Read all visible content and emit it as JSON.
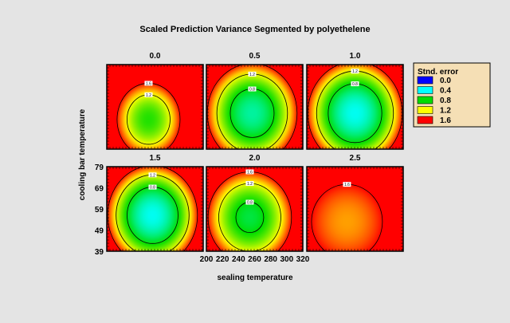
{
  "chart_data": {
    "type": "heatmap",
    "title": "Scaled Prediction Variance Segmented by polyethelene",
    "xlabel": "sealing temperature",
    "ylabel": "cooling bar temperature",
    "x_ticks": [
      "200",
      "220",
      "240",
      "260",
      "280",
      "300",
      "320"
    ],
    "y_ticks": [
      "79",
      "69",
      "59",
      "49",
      "39"
    ],
    "xlim": [
      200,
      320
    ],
    "ylim": [
      39,
      79
    ],
    "panels": [
      {
        "label": "0.0",
        "center_x": 252,
        "center_y": 53,
        "radius_x": 40,
        "radius_y": 17.5,
        "min_value": 0.85,
        "contours": [
          {
            "label": "1.2",
            "level": 1.2
          },
          {
            "label": "1.6",
            "level": 1.6
          }
        ]
      },
      {
        "label": "0.5",
        "center_x": 257,
        "center_y": 56,
        "radius_x": 57,
        "radius_y": 24,
        "min_value": 0.55,
        "contours": [
          {
            "label": "0.8",
            "level": 0.8
          },
          {
            "label": "1.2",
            "level": 1.2
          },
          {
            "label": "1.6",
            "level": 1.6
          }
        ]
      },
      {
        "label": "1.0",
        "center_x": 260,
        "center_y": 56,
        "radius_x": 60,
        "radius_y": 25,
        "min_value": 0.42,
        "contours": [
          {
            "label": "0.8",
            "level": 0.8
          },
          {
            "label": "1.2",
            "level": 1.2
          },
          {
            "label": "1.6",
            "level": 1.6
          }
        ]
      },
      {
        "label": "1.5",
        "center_x": 257,
        "center_y": 56,
        "radius_x": 57,
        "radius_y": 24,
        "min_value": 0.42,
        "contours": [
          {
            "label": "0.8",
            "level": 0.8
          },
          {
            "label": "1.2",
            "level": 1.2
          },
          {
            "label": "1.6",
            "level": 1.6
          }
        ]
      },
      {
        "label": "2.0",
        "center_x": 254,
        "center_y": 55,
        "radius_x": 53,
        "radius_y": 22,
        "min_value": 0.7,
        "contours": [
          {
            "label": "0.8",
            "level": 0.8
          },
          {
            "label": "1.2",
            "level": 1.2
          },
          {
            "label": "1.6",
            "level": 1.6
          }
        ]
      },
      {
        "label": "2.5",
        "center_x": 250,
        "center_y": 53,
        "radius_x": 45,
        "radius_y": 18,
        "min_value": 1.35,
        "contours": [
          {
            "label": "1.6",
            "level": 1.6
          }
        ]
      }
    ],
    "legend": {
      "title": "Stnd. error",
      "placement": "right",
      "items": [
        {
          "label": "0.0",
          "color": "#0000ff"
        },
        {
          "label": "0.4",
          "color": "#00ffff"
        },
        {
          "label": "0.8",
          "color": "#00dd00"
        },
        {
          "label": "1.2",
          "color": "#ffff00"
        },
        {
          "label": "1.6",
          "color": "#ff0000"
        }
      ]
    },
    "colorscale": [
      {
        "value": 0.4,
        "color": "#00ffff"
      },
      {
        "value": 0.8,
        "color": "#00dd00"
      },
      {
        "value": 1.2,
        "color": "#ffff00"
      },
      {
        "value": 1.6,
        "color": "#ff0000"
      }
    ],
    "grid": false
  }
}
